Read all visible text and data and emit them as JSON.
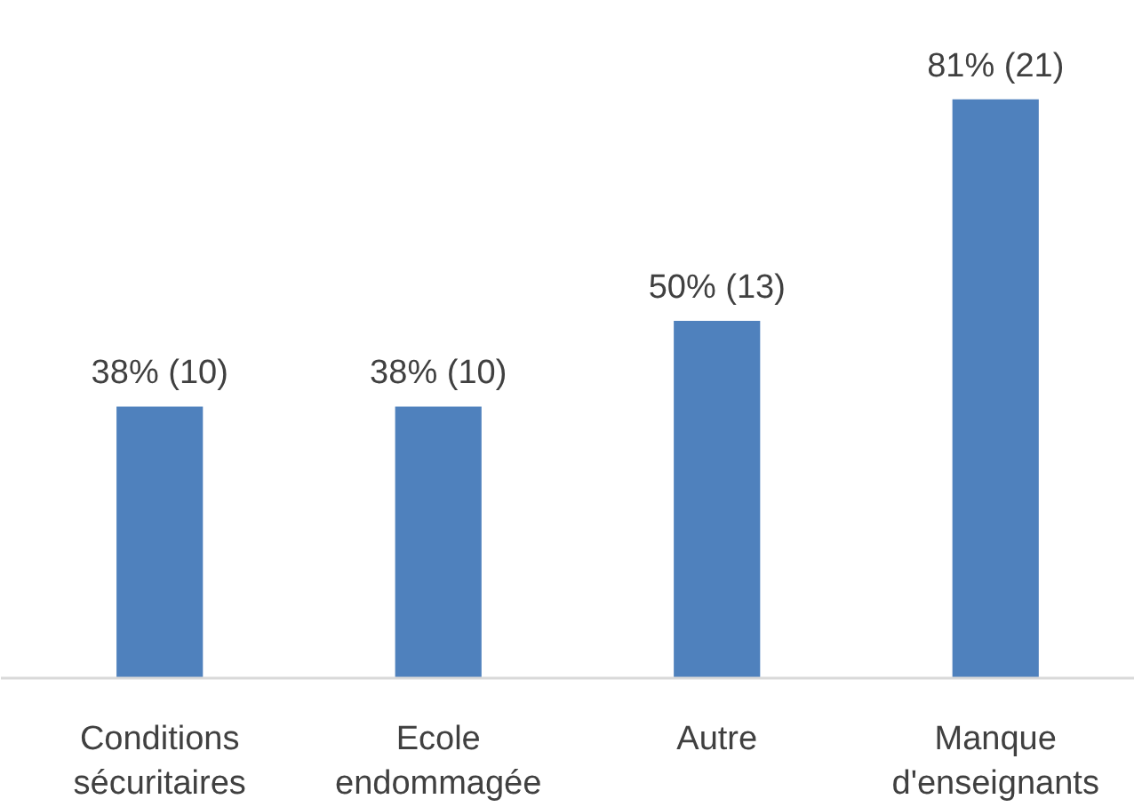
{
  "chart_data": {
    "type": "bar",
    "categories": [
      "Conditions sécuritaires",
      "Ecole endommagée",
      "Autre",
      "Manque d'enseignants"
    ],
    "values": [
      38,
      38,
      50,
      81
    ],
    "value_labels": [
      "38% (10)",
      "38% (10)",
      "50% (13)",
      "81% (21)"
    ],
    "color": "#4f81bd",
    "grid": false
  }
}
